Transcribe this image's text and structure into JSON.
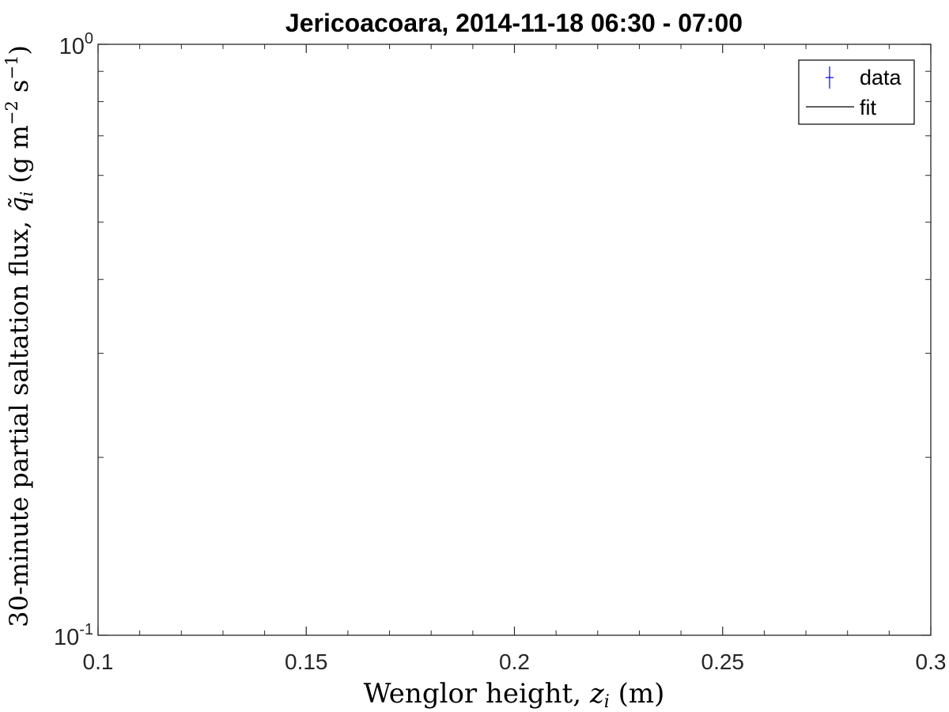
{
  "chart_data": {
    "type": "scatter",
    "title": "Jericoacoara, 2014-11-18 06:30 - 07:00",
    "xlabel": {
      "prefix": "Wenglor height, ",
      "var": "z",
      "sub": "i",
      "suffix": " (m)"
    },
    "ylabel": {
      "prefix": "30-minute partial saltation flux, ",
      "var": "q̃",
      "sub": "i",
      "unit_open": " (g m",
      "unit_exp1": "−2",
      "unit_mid": " s",
      "unit_exp2": "−1",
      "unit_close": ")"
    },
    "xlim": [
      0.1,
      0.3
    ],
    "ylim": [
      0.1,
      1
    ],
    "yscale": "log",
    "grid": false,
    "x_ticks": [
      {
        "value": 0.1,
        "label": "0.1"
      },
      {
        "value": 0.15,
        "label": "0.15"
      },
      {
        "value": 0.2,
        "label": "0.2"
      },
      {
        "value": 0.25,
        "label": "0.25"
      },
      {
        "value": 0.3,
        "label": "0.3"
      }
    ],
    "y_ticks": [
      {
        "value": 0.1,
        "base": "10",
        "exp": "-1"
      },
      {
        "value": 1,
        "base": "10",
        "exp": "0"
      }
    ],
    "legend": {
      "placement": "top-right",
      "entries": [
        {
          "label": "data",
          "marker": "errorbar",
          "color": "#0000ff"
        },
        {
          "label": "fit",
          "marker": "line",
          "color": "#000000"
        }
      ]
    },
    "series": [
      {
        "name": "data",
        "x": [],
        "y": []
      },
      {
        "name": "fit",
        "x": [],
        "y": []
      }
    ]
  }
}
